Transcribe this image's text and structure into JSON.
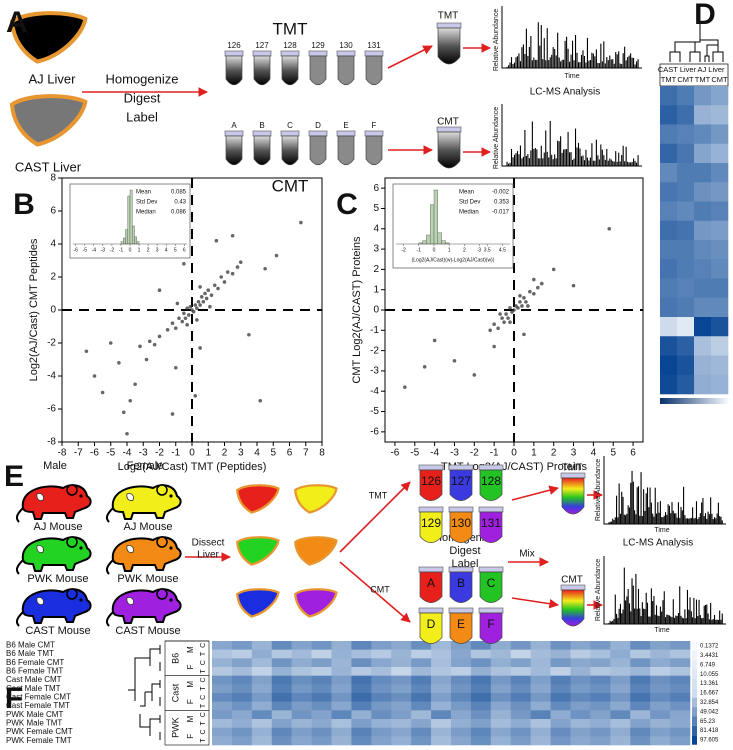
{
  "panel_a": {
    "letter": "A",
    "liver_labels": [
      "AJ Liver",
      "CAST Liver"
    ],
    "steps": [
      "Homogenize",
      "Digest",
      "Label"
    ],
    "tmt": {
      "title": "TMT",
      "tubes": [
        "126",
        "127",
        "128",
        "129",
        "130",
        "131"
      ]
    },
    "cmt": {
      "title": "CMT",
      "tubes": [
        "A",
        "B",
        "C",
        "D",
        "E",
        "F"
      ]
    },
    "pooled": [
      "TMT",
      "CMT"
    ],
    "spectrum": {
      "y_label": "Relative Abundance",
      "x_label": "Time"
    },
    "analysis": "LC-MS Analysis"
  },
  "panel_e": {
    "letter": "E",
    "sexes": [
      "Male",
      "Female"
    ],
    "mice": [
      {
        "name": "AJ Mouse",
        "colors": [
          "#e8201c",
          "#f2ee1a"
        ]
      },
      {
        "name": "PWK Mouse",
        "colors": [
          "#22d322",
          "#f28a14"
        ]
      },
      {
        "name": "CAST Mouse",
        "colors": [
          "#1a2ee0",
          "#a020e0"
        ]
      }
    ],
    "dissect": [
      "Dissect",
      "Liver"
    ],
    "branches": [
      "TMT",
      "CMT"
    ],
    "steps": [
      "Homogenize",
      "Digest",
      "Label"
    ],
    "mix": "Mix",
    "tubes": [
      [
        "126",
        "127",
        "128"
      ],
      [
        "129",
        "130",
        "131"
      ],
      [
        "A",
        "B",
        "C"
      ],
      [
        "D",
        "E",
        "F"
      ]
    ],
    "tube_colors": [
      [
        "#e8201c",
        "#3a3ae0",
        "#22c322"
      ],
      [
        "#f2ee1a",
        "#f28a14",
        "#a020e0"
      ],
      [
        "#e8201c",
        "#3a3ae0",
        "#22c322"
      ],
      [
        "#f2ee1a",
        "#f28a14",
        "#a020e0"
      ]
    ],
    "pooled": [
      "TMT",
      "CMT"
    ],
    "spectrum": {
      "y_label": "Relative Abundance",
      "x_label": "Time"
    },
    "analysis": "LC-MS Analysis"
  },
  "chart_data": [
    {
      "panel": "B",
      "type": "scatter",
      "x_label": "Log2(AJ/Cast) TMT (Peptides)",
      "y_label": "Log2(AJ/Cast) CMT Peptides",
      "xlim": [
        -8,
        8
      ],
      "ylim": [
        -8,
        8
      ],
      "xticks": [
        -8,
        -7,
        -6,
        -5,
        -4,
        -3,
        -2,
        -1,
        0,
        1,
        2,
        3,
        4,
        5,
        6,
        7,
        8
      ],
      "yticks": [
        -8,
        -6,
        -4,
        -2,
        0,
        2,
        4,
        6,
        8
      ],
      "color": "#333333",
      "x": [
        -1.5,
        -1.2,
        -1,
        -0.8,
        -0.6,
        -0.5,
        -0.4,
        -0.3,
        -0.2,
        -0.1,
        0,
        0.1,
        0.2,
        0.3,
        0.4,
        0.5,
        0.6,
        0.7,
        0.8,
        0.9,
        1,
        1.2,
        1.4,
        1.6,
        1.8,
        2,
        2.2,
        2.5,
        2.8,
        3,
        -2,
        -2.3,
        -2.6,
        -0.3,
        0.3,
        -0.9,
        1.1,
        0.5,
        -5,
        -6,
        -4.5,
        -3.5,
        -5.5,
        -4.2,
        -3.8,
        -4,
        -3.2,
        -2.8,
        -6.5,
        -1.2,
        0.2,
        0.5,
        -1.5,
        -0.5,
        1.5,
        2.5,
        4.5,
        5.2,
        6.7,
        3.5,
        4.2,
        -2,
        -1
      ],
      "values": [
        -1.2,
        -0.8,
        -1.1,
        -0.5,
        -0.7,
        -0.2,
        -0.5,
        0.1,
        -0.3,
        0.2,
        0,
        -0.1,
        0.3,
        0.1,
        0.5,
        0.3,
        0.8,
        0.5,
        1,
        0.7,
        1.2,
        0.9,
        1.5,
        1.3,
        2,
        1.7,
        2.3,
        2.2,
        2.6,
        2.9,
        -1.6,
        -2.1,
        -1.9,
        -0.9,
        -0.6,
        0.4,
        0.2,
        1.4,
        -2,
        -4,
        -3.2,
        -4.5,
        -5,
        -6.2,
        -5.5,
        -7.5,
        -2.2,
        -3,
        -2.5,
        -6.3,
        -5.2,
        -2.3,
        3.5,
        2.8,
        4.2,
        4.5,
        2.5,
        3.3,
        5.3,
        -1.5,
        -5.5,
        1.2,
        -3.5
      ],
      "inset": {
        "type": "histogram",
        "bins": [
          -1,
          -0.75,
          -0.5,
          -0.25,
          0,
          0.25,
          0.5,
          0.75,
          1
        ],
        "values": [
          2,
          5,
          12,
          40,
          45,
          15,
          6,
          2
        ],
        "color": "#b9d3b0",
        "xlim": [
          -6.3,
          6.3
        ],
        "xticks": [
          -6,
          -5,
          -4,
          -3,
          -2,
          -1,
          0,
          1,
          2,
          3,
          4,
          5,
          6
        ],
        "stats": [
          {
            "label": "Mean",
            "value": 0.085
          },
          {
            "label": "Std Dev",
            "value": 0.43
          },
          {
            "label": "Median",
            "value": 0.086
          }
        ]
      }
    },
    {
      "panel": "C",
      "type": "scatter",
      "x_label": "TMT Log2(AJ/CAST) Proteins",
      "y_label": "CMT Log2(AJ/CAST) Proteins",
      "xlim": [
        -6.5,
        6.5
      ],
      "ylim": [
        -6.5,
        6.5
      ],
      "xticks": [
        -6,
        -5,
        -4,
        -3,
        -2,
        -1,
        0,
        1,
        2,
        3,
        4,
        5,
        6
      ],
      "yticks": [
        -6,
        -5,
        -4,
        -3,
        -2,
        -1,
        0,
        1,
        2,
        3,
        4,
        5,
        6
      ],
      "color": "#333333",
      "x": [
        -1.2,
        -1,
        -0.8,
        -0.6,
        -0.5,
        -0.4,
        -0.3,
        -0.2,
        -0.1,
        0,
        0.1,
        0.2,
        0.3,
        0.4,
        0.5,
        0.6,
        0.8,
        1,
        1.2,
        1.4,
        -0.7,
        0.7,
        -0.2,
        0.3,
        -5.5,
        -4.5,
        -3,
        -1,
        1,
        2,
        4.8,
        -4,
        3,
        0.5,
        -2
      ],
      "values": [
        -1,
        -0.7,
        -0.9,
        -0.4,
        -0.6,
        -0.2,
        -0.4,
        0.1,
        -0.1,
        0,
        0.2,
        0.1,
        0.4,
        0.2,
        0.6,
        0.4,
        0.9,
        0.8,
        1.1,
        1.3,
        -0.2,
        0.2,
        -0.6,
        0.7,
        -3.8,
        -2.8,
        -2.5,
        -1.8,
        1.5,
        2,
        4,
        -1.5,
        1.2,
        -1.2,
        -3.2
      ],
      "inset": {
        "type": "histogram",
        "bins": [
          -1,
          -0.75,
          -0.5,
          -0.25,
          0,
          0.25,
          0.5,
          0.75,
          1
        ],
        "values": [
          1,
          3,
          8,
          35,
          48,
          10,
          3,
          1
        ],
        "color": "#b9d3b0",
        "xlim": [
          -2.5,
          5
        ],
        "xticks": [
          -2,
          -1,
          0,
          1,
          2,
          3,
          3.5,
          4.5
        ],
        "x_label": "(Log2(AJ/Cast)(w)-Log2(AJ/Cast)(w))",
        "stats": [
          {
            "label": "Mean",
            "value": -0.002
          },
          {
            "label": "Std Dev",
            "value": 0.353
          },
          {
            "label": "Median",
            "value": -0.017
          }
        ]
      }
    },
    {
      "panel": "D",
      "type": "heatmap",
      "column_groups": [
        "CAST Liver",
        "AJ Liver"
      ],
      "columns": [
        "TMT",
        "CMT",
        "TMT",
        "CMT"
      ],
      "values": [
        [
          0.45,
          0.5,
          0.6,
          0.65
        ],
        [
          0.4,
          0.45,
          0.7,
          0.72
        ],
        [
          0.5,
          0.52,
          0.55,
          0.6
        ],
        [
          0.42,
          0.48,
          0.65,
          0.7
        ],
        [
          0.55,
          0.5,
          0.5,
          0.55
        ],
        [
          0.48,
          0.5,
          0.58,
          0.6
        ],
        [
          0.52,
          0.55,
          0.5,
          0.52
        ],
        [
          0.45,
          0.47,
          0.6,
          0.62
        ],
        [
          0.5,
          0.5,
          0.55,
          0.57
        ],
        [
          0.47,
          0.5,
          0.52,
          0.55
        ],
        [
          0.5,
          0.52,
          0.5,
          0.5
        ],
        [
          0.48,
          0.5,
          0.55,
          0.55
        ],
        [
          0.85,
          0.9,
          0.3,
          0.35
        ],
        [
          0.35,
          0.4,
          0.75,
          0.8
        ],
        [
          0.3,
          0.35,
          0.7,
          0.72
        ],
        [
          0.32,
          0.38,
          0.68,
          0.7
        ]
      ]
    },
    {
      "panel": "F",
      "type": "heatmap",
      "rows": [
        "B6 Male CMT",
        "B6 Male TMT",
        "B6 Female CMT",
        "B6 Female TMT",
        "Cast Male CMT",
        "Cast Male TMT",
        "Cast Female CMT",
        "Cast Female TMT",
        "PWK Male CMT",
        "PWK Male TMT",
        "PWK Female CMT",
        "PWK Female TMT"
      ],
      "groups": [
        "B6",
        "Cast",
        "PWK"
      ],
      "sexes": [
        "M",
        "F"
      ],
      "channels": [
        "C",
        "T"
      ],
      "scale": [
        0.1372,
        3.4431,
        6.749,
        10.055,
        13.361,
        16.667,
        32.854,
        49.042,
        65.23,
        81.418,
        97.605
      ],
      "values": [
        [
          45,
          52,
          38,
          60,
          47,
          55,
          41,
          63,
          50,
          44,
          58,
          36,
          49,
          61,
          43,
          54,
          39,
          57,
          46,
          52,
          40,
          59,
          48,
          53
        ],
        [
          30,
          25,
          42,
          28,
          35,
          22,
          40,
          33,
          27,
          38,
          24,
          31,
          45,
          29,
          36,
          21,
          34,
          39,
          26,
          32,
          43,
          28,
          37,
          30
        ],
        [
          40,
          48,
          35,
          55,
          42,
          50,
          37,
          58,
          45,
          39,
          52,
          33,
          47,
          56,
          41,
          49,
          36,
          53,
          44,
          48,
          38,
          55,
          43,
          50
        ],
        [
          28,
          34,
          22,
          40,
          30,
          25,
          38,
          27,
          33,
          20,
          36,
          29,
          24,
          41,
          31,
          26,
          35,
          23,
          39,
          28,
          32,
          37,
          25,
          30
        ],
        [
          55,
          62,
          48,
          70,
          58,
          65,
          51,
          73,
          60,
          54,
          68,
          46,
          59,
          71,
          53,
          64,
          49,
          67,
          56,
          62,
          50,
          69,
          57,
          63
        ],
        [
          50,
          58,
          44,
          66,
          53,
          60,
          47,
          69,
          56,
          49,
          63,
          42,
          55,
          67,
          48,
          59,
          45,
          62,
          52,
          57,
          46,
          64,
          54,
          59
        ],
        [
          60,
          66,
          52,
          74,
          62,
          69,
          55,
          77,
          64,
          58,
          72,
          50,
          63,
          75,
          57,
          68,
          53,
          71,
          61,
          66,
          54,
          73,
          60,
          67
        ],
        [
          48,
          56,
          42,
          63,
          51,
          58,
          45,
          66,
          53,
          47,
          61,
          40,
          52,
          64,
          46,
          57,
          43,
          60,
          50,
          55,
          44,
          62,
          49,
          56
        ],
        [
          52,
          44,
          60,
          38,
          55,
          47,
          63,
          41,
          58,
          50,
          36,
          62,
          45,
          57,
          39,
          53,
          65,
          42,
          56,
          48,
          61,
          37,
          54,
          46
        ],
        [
          35,
          42,
          30,
          48,
          38,
          44,
          32,
          50,
          40,
          36,
          46,
          28,
          41,
          49,
          34,
          43,
          31,
          47,
          37,
          42,
          33,
          48,
          39,
          44
        ],
        [
          47,
          55,
          40,
          62,
          50,
          57,
          43,
          65,
          52,
          46,
          60,
          38,
          51,
          63,
          45,
          56,
          41,
          59,
          48,
          54,
          42,
          61,
          49,
          55
        ],
        [
          42,
          50,
          36,
          57,
          45,
          52,
          39,
          60,
          47,
          41,
          55,
          34,
          46,
          58,
          40,
          51,
          37,
          54,
          44,
          49,
          38,
          56,
          43,
          50
        ]
      ]
    }
  ]
}
